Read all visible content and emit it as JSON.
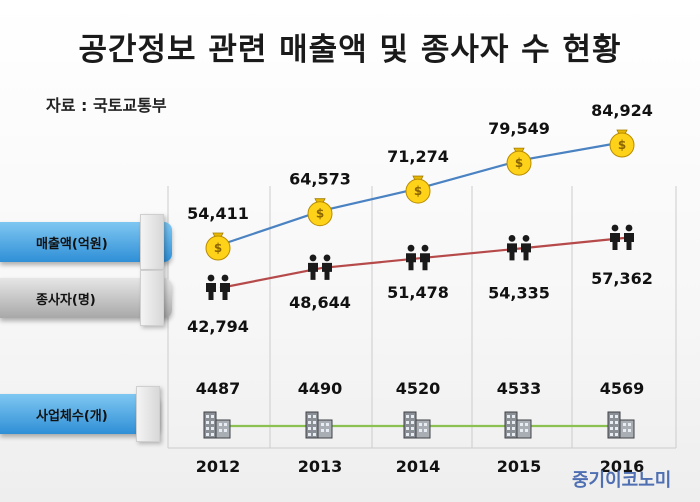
{
  "title": "공간정보 관련 매출액 및 종사자 수 현황",
  "source": "자료 : 국토교통부",
  "brand": "중기이코노미",
  "tabs": {
    "revenue": "매출액(억원)",
    "employees": "종사자(명)",
    "companies": "사업체수(개)"
  },
  "colors": {
    "revenue_line": "#4a82c2",
    "employees_line": "#b64a4a",
    "companies_line": "#8cc152",
    "grid": "#cccccc"
  },
  "icons": {
    "revenue": "money-bag-icon",
    "employees": "people-icon",
    "companies": "building-icon"
  },
  "chart_data": {
    "type": "line",
    "title": "공간정보 관련 매출액 및 종사자 수 현황",
    "categories": [
      "2012",
      "2013",
      "2014",
      "2015",
      "2016"
    ],
    "series": [
      {
        "name": "매출액(억원)",
        "values": [
          54411,
          64573,
          71274,
          79549,
          84924
        ],
        "labels": [
          "54,411",
          "64,573",
          "71,274",
          "79,549",
          "84,924"
        ]
      },
      {
        "name": "종사자(명)",
        "values": [
          42794,
          48644,
          51478,
          54335,
          57362
        ],
        "labels": [
          "42,794",
          "48,644",
          "51,478",
          "54,335",
          "57,362"
        ]
      },
      {
        "name": "사업체수(개)",
        "values": [
          4487,
          4490,
          4520,
          4533,
          4569
        ],
        "labels": [
          "4487",
          "4490",
          "4520",
          "4533",
          "4569"
        ]
      }
    ],
    "grid": true,
    "legend": "left"
  }
}
